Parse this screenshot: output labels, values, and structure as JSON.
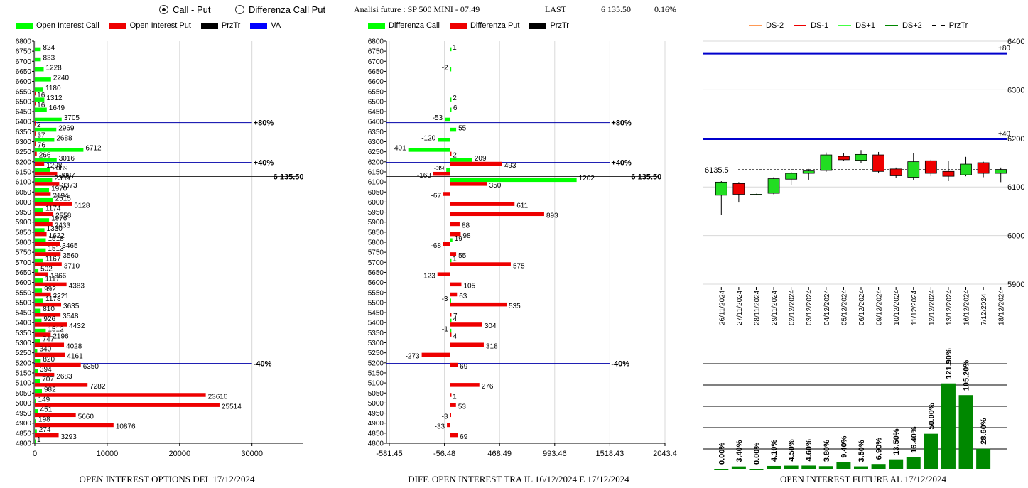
{
  "controls": {
    "call_put": "Call - Put",
    "diff_call_put": "Differenza Call Put"
  },
  "header": {
    "title": "Analisi future : SP 500 MINI - 07:49",
    "last_label": "LAST",
    "last_value": "6 135.50",
    "change": "0.16%"
  },
  "colors": {
    "call": "#00ff00",
    "put": "#ee0000",
    "przt": "#000000",
    "va": "#0000ff",
    "up_candle": "#22dd22",
    "down_candle": "#ee0000",
    "future_bar": "#008800"
  },
  "legend_left": [
    "Open Interest Call",
    "Open Interest Put",
    "PrzTr",
    "VA"
  ],
  "legend_mid": [
    "Differenza Call",
    "Differenza Put",
    "PrzTr"
  ],
  "legend_right": [
    "DS-2",
    "DS-1",
    "DS+1",
    "DS+2",
    "PrzTr"
  ],
  "footers": {
    "left": "OPEN INTEREST OPTIONS DEL 17/12/2024",
    "mid": "DIFF. OPEN INTEREST TRA IL 16/12/2024 E 17/12/2024",
    "right": "OPEN INTEREST FUTURE AL 17/12/2024"
  },
  "chart_data": [
    {
      "type": "bar",
      "orientation": "horizontal",
      "strikes": [
        6800,
        6750,
        6700,
        6650,
        6600,
        6550,
        6500,
        6450,
        6400,
        6350,
        6300,
        6250,
        6200,
        6150,
        6100,
        6050,
        6000,
        5950,
        5900,
        5850,
        5800,
        5750,
        5700,
        5650,
        5600,
        5550,
        5500,
        5450,
        5400,
        5350,
        5300,
        5250,
        5200,
        5150,
        5100,
        5050,
        5000,
        4950,
        4900,
        4850,
        4800
      ],
      "series": [
        {
          "name": "Open Interest Call",
          "values": [
            null,
            824,
            833,
            1228,
            2240,
            1180,
            1312,
            1649,
            3705,
            2969,
            2688,
            6712,
            3016,
            2089,
            2389,
            1970,
            2515,
            1174,
            1976,
            1330,
            1518,
            1513,
            1167,
            502,
            1117,
            992,
            1178,
            810,
            926,
            1512,
            747,
            340,
            820,
            394,
            707,
            982,
            149,
            451,
            198,
            274,
            1
          ]
        },
        {
          "name": "Open Interest Put",
          "values": [
            null,
            null,
            null,
            null,
            null,
            16,
            16,
            null,
            2,
            37,
            76,
            266,
            1298,
            3087,
            3373,
            2194,
            5128,
            2558,
            2433,
            1622,
            3465,
            3560,
            3710,
            1866,
            4383,
            2221,
            3635,
            3548,
            4432,
            2196,
            4028,
            4161,
            6350,
            2683,
            7282,
            23616,
            25514,
            5660,
            10876,
            3293,
            null
          ]
        }
      ],
      "xlim": [
        0,
        37000
      ],
      "xticks": [
        0,
        10000,
        20000,
        30000
      ],
      "lines": [
        {
          "label": "+80%",
          "strike": 6395
        },
        {
          "label": "+40%",
          "strike": 6197
        },
        {
          "label": "6 135.50",
          "strike": 6127
        },
        {
          "label": "-40%",
          "strike": 5197
        }
      ]
    },
    {
      "type": "bar",
      "orientation": "horizontal",
      "strikes": [
        6800,
        6750,
        6700,
        6650,
        6600,
        6550,
        6500,
        6450,
        6400,
        6350,
        6300,
        6250,
        6200,
        6150,
        6100,
        6050,
        6000,
        5950,
        5900,
        5850,
        5800,
        5750,
        5700,
        5650,
        5600,
        5550,
        5500,
        5450,
        5400,
        5350,
        5300,
        5250,
        5200,
        5150,
        5100,
        5050,
        5000,
        4950,
        4900,
        4850,
        4800
      ],
      "series": [
        {
          "name": "Differenza Call",
          "values": [
            null,
            1,
            null,
            -2,
            null,
            null,
            2,
            6,
            -53,
            55,
            -120,
            -401,
            209,
            -39,
            1202,
            null,
            null,
            null,
            null,
            null,
            19,
            null,
            1,
            null,
            null,
            null,
            -3,
            null,
            4,
            -1,
            null,
            null,
            null,
            null,
            null,
            null,
            null,
            null,
            null,
            null,
            null
          ]
        },
        {
          "name": "Differenza Put",
          "values": [
            null,
            null,
            null,
            null,
            null,
            null,
            null,
            null,
            null,
            null,
            null,
            2,
            493,
            -163,
            350,
            -67,
            611,
            893,
            88,
            98,
            -68,
            55,
            575,
            -123,
            105,
            63,
            535,
            7,
            304,
            4,
            318,
            -273,
            69,
            null,
            276,
            1,
            53,
            -3,
            -33,
            69,
            null
          ]
        }
      ],
      "xlim": [
        -581.45,
        2043.4
      ],
      "xticks": [
        -581.45,
        -56.48,
        468.49,
        993.46,
        1518.43,
        2043.4
      ],
      "lines": [
        {
          "label": "+80%",
          "strike": 6395
        },
        {
          "label": "+40%",
          "strike": 6197
        },
        {
          "label": "6 135.50",
          "strike": 6127
        },
        {
          "label": "-40%",
          "strike": 5197
        }
      ]
    },
    {
      "type": "candlestick",
      "dates": [
        "26/11/2024",
        "27/11/2024",
        "28/11/2024",
        "29/11/2024",
        "02/12/2024",
        "03/12/2024",
        "04/12/2024",
        "05/12/2024",
        "06/12/2024",
        "09/12/2024",
        "10/12/2024",
        "11/12/2024",
        "12/12/2024",
        "13/12/2024",
        "16/12/2024",
        "7/12/2024",
        "18/12/2024"
      ],
      "ohlc": [
        [
          6083,
          6112,
          6043,
          6110
        ],
        [
          6107,
          6110,
          6068,
          6085
        ],
        [
          6084,
          6086,
          6083,
          6085
        ],
        [
          6087,
          6120,
          6085,
          6117
        ],
        [
          6116,
          6131,
          6104,
          6128
        ],
        [
          6128,
          6137,
          6115,
          6133
        ],
        [
          6134,
          6171,
          6131,
          6166
        ],
        [
          6163,
          6169,
          6153,
          6156
        ],
        [
          6155,
          6176,
          6149,
          6167
        ],
        [
          6166,
          6172,
          6128,
          6132
        ],
        [
          6137,
          6140,
          6118,
          6123
        ],
        [
          6120,
          6170,
          6114,
          6152
        ],
        [
          6154,
          6156,
          6122,
          6128
        ],
        [
          6132,
          6154,
          6112,
          6122
        ],
        [
          6125,
          6162,
          6122,
          6147
        ],
        [
          6150,
          6152,
          6120,
          6128
        ],
        [
          6128,
          6140,
          6110,
          6136
        ]
      ],
      "ylim": [
        5900,
        6400
      ],
      "yticks": [
        5900,
        6000,
        6100,
        6200,
        6300,
        6400
      ],
      "lines": [
        {
          "label": "+80",
          "value": 6375
        },
        {
          "label": "+40",
          "value": 6199
        }
      ],
      "przt_label": "6135.5",
      "przt": 6135.5,
      "legend": [
        "DS-2",
        "DS-1",
        "DS+1",
        "DS+2",
        "PrzTr"
      ]
    },
    {
      "type": "bar",
      "categories": [
        "26/11/2024",
        "27/11/2024",
        "28/11/2024",
        "29/11/2024",
        "02/12/2024",
        "03/12/2024",
        "04/12/2024",
        "05/12/2024",
        "06/12/2024",
        "09/12/2024",
        "10/12/2024",
        "11/12/2024",
        "12/12/2024",
        "13/12/2024",
        "16/12/2024",
        "7/12/2024",
        "18/12/2024"
      ],
      "values": [
        0.0,
        3.4,
        0.0,
        4.1,
        4.5,
        4.6,
        3.8,
        9.4,
        3.5,
        6.9,
        13.5,
        16.4,
        50.0,
        121.9,
        105.2,
        28.6,
        null
      ],
      "labels": [
        "0.00%",
        "3.40%",
        "0.00%",
        "4.10%",
        "4.50%",
        "4.60%",
        "3.80%",
        "9.40%",
        "3.50%",
        "6.90%",
        "13.50%",
        "16.40%",
        "50.00%",
        "121.90%",
        "105.20%",
        "28.60%"
      ]
    }
  ]
}
